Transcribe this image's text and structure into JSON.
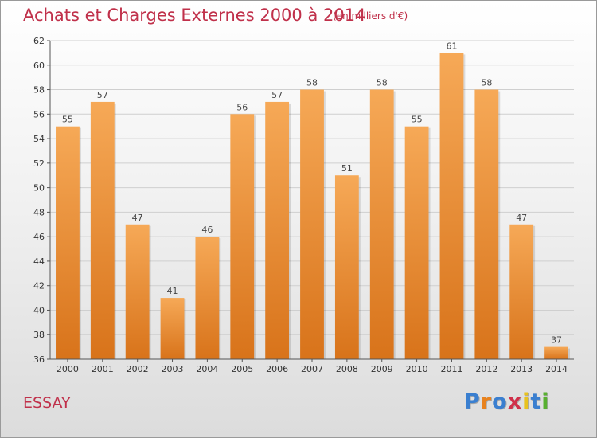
{
  "title": "Achats et Charges Externes 2000 à 2014",
  "subtitle": "(en milliers d'€)",
  "location": "ESSAY",
  "logo": {
    "text": "Proxiti",
    "letter_colors": [
      "#3a7fd0",
      "#e8821e",
      "#3a7fd0",
      "#d0304a",
      "#e8c21e",
      "#3a7fd0",
      "#58b030"
    ]
  },
  "colors": {
    "title": "#c0304a",
    "bar_top": "#f6a957",
    "bar_bottom": "#d8731a",
    "grid": "#cfcfcf"
  },
  "chart_data": {
    "type": "bar",
    "categories": [
      "2000",
      "2001",
      "2002",
      "2003",
      "2004",
      "2005",
      "2006",
      "2007",
      "2008",
      "2009",
      "2010",
      "2011",
      "2012",
      "2013",
      "2014"
    ],
    "values": [
      55,
      57,
      47,
      41,
      46,
      56,
      57,
      58,
      51,
      58,
      55,
      61,
      58,
      47,
      37
    ],
    "ylim": [
      36,
      62
    ],
    "yticks": [
      36,
      38,
      40,
      42,
      44,
      46,
      48,
      50,
      52,
      54,
      56,
      58,
      60,
      62
    ],
    "grid": "horizontal",
    "legend": "none"
  }
}
